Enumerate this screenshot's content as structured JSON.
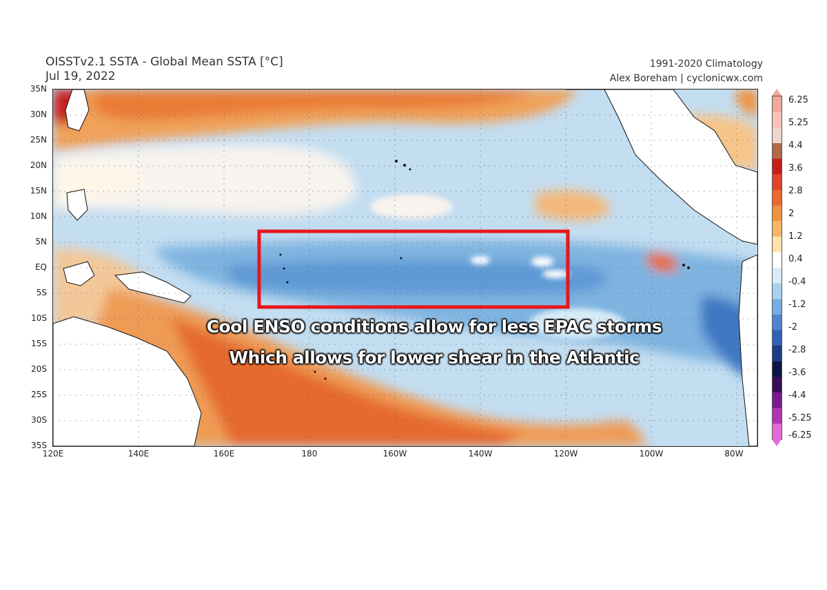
{
  "header": {
    "title": "OISSTv2.1 SSTA - Global Mean SSTA [°C]",
    "date": "Jul 19, 2022",
    "climatology": "1991-2020 Climatology",
    "credit": "Alex Boreham | cyclonicwx.com"
  },
  "map": {
    "lat_labels": [
      "35N",
      "30N",
      "25N",
      "20N",
      "15N",
      "10N",
      "5N",
      "EQ",
      "5S",
      "10S",
      "15S",
      "20S",
      "25S",
      "30S",
      "35S"
    ],
    "lon_labels": [
      "120E",
      "140E",
      "160E",
      "180",
      "160W",
      "140W",
      "120W",
      "100W",
      "80W"
    ],
    "colors": {
      "land": "#ffffff",
      "box_outline": "#e8161b"
    },
    "highlight_box": {
      "lon_range": [
        "172E",
        "120W"
      ],
      "lat_range": [
        "7N",
        "8S"
      ]
    }
  },
  "colorbar": {
    "labels": [
      "6.25",
      "5.25",
      "4.4",
      "3.6",
      "2.8",
      "2",
      "1.2",
      "0.4",
      "-0.4",
      "-1.2",
      "-2",
      "-2.8",
      "-3.6",
      "-4.4",
      "-5.25",
      "-6.25"
    ],
    "colors": [
      "#f1a99a",
      "#f6c3b6",
      "#efd6cd",
      "#b06a4a",
      "#c81e1a",
      "#e0452b",
      "#ea6a2d",
      "#f0913d",
      "#f6b567",
      "#fde3a8",
      "#ffffff",
      "#d8ecf8",
      "#a9d2ef",
      "#75aee3",
      "#4d86cf",
      "#3161b4",
      "#1c3c88",
      "#0b1546",
      "#3a0d58",
      "#7a1a8c",
      "#b236b4",
      "#e36ad8"
    ]
  },
  "annotation": {
    "line1": "Cool ENSO conditions allow for less EPAC storms",
    "line2": "Which allows for lower shear in the Atlantic"
  }
}
